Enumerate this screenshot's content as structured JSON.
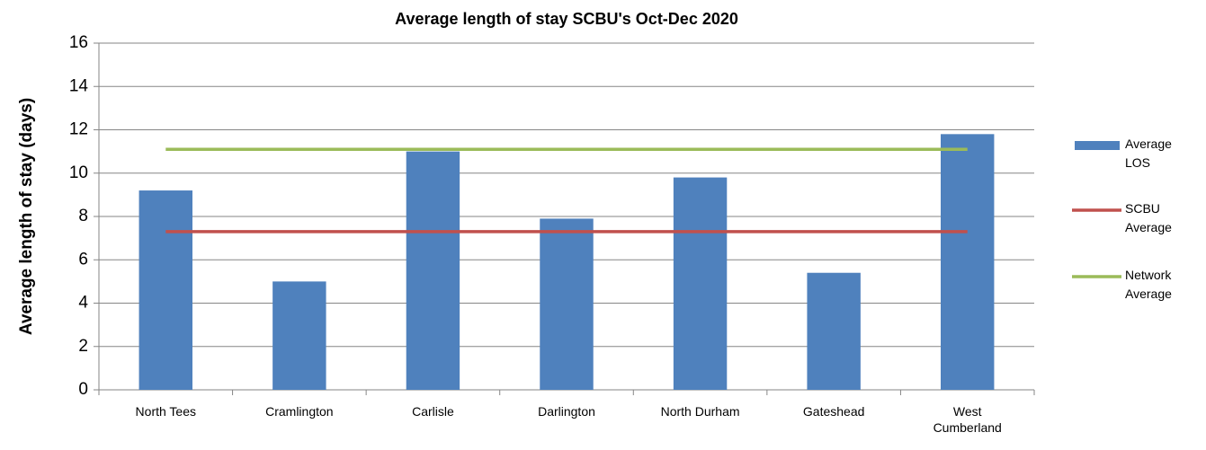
{
  "chart_data": {
    "type": "bar",
    "title": "Average length of stay SCBU's Oct-Dec 2020",
    "y_label": "Average length of stay (days)",
    "categories": [
      "North Tees",
      "Cramlington",
      "Carlisle",
      "Darlington",
      "North Durham",
      "Gateshead",
      "West Cumberland"
    ],
    "series": [
      {
        "name": "Average LOS",
        "type": "bar",
        "color": "#4f81bd",
        "values": [
          9.2,
          5.0,
          11.0,
          7.9,
          9.8,
          5.4,
          11.8
        ]
      },
      {
        "name": "SCBU Average",
        "type": "line",
        "color": "#c0504d",
        "values": [
          7.3,
          7.3,
          7.3,
          7.3,
          7.3,
          7.3,
          7.3
        ]
      },
      {
        "name": "Network Average",
        "type": "line",
        "color": "#9bbb59",
        "values": [
          11.1,
          11.1,
          11.1,
          11.1,
          11.1,
          11.1,
          11.1
        ]
      }
    ],
    "ylim": [
      0,
      16
    ],
    "yticks": [
      0,
      2,
      4,
      6,
      8,
      10,
      12,
      14,
      16
    ],
    "grid": true,
    "legend": "right"
  }
}
